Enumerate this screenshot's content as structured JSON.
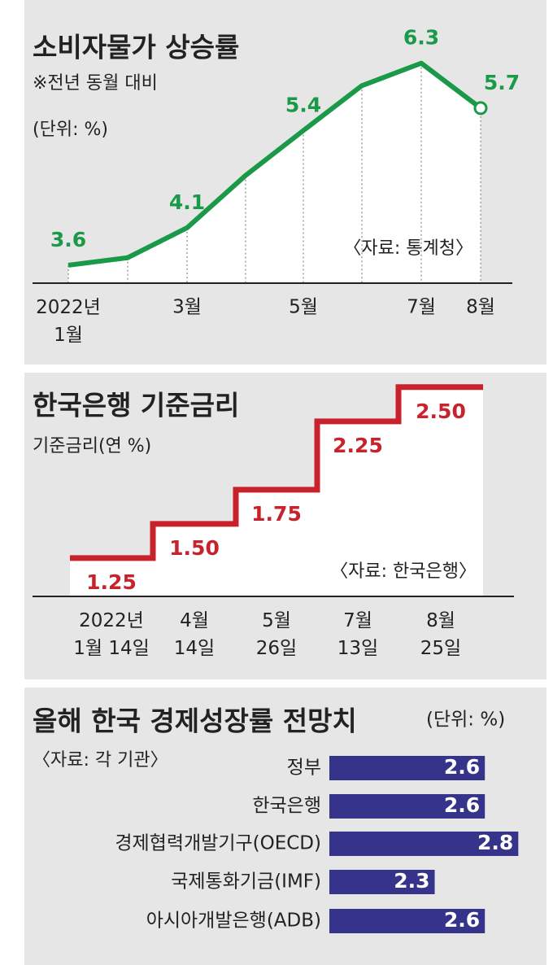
{
  "chart_data": [
    {
      "type": "line",
      "title": "소비자물가 상승률",
      "subtitle": "※전년 동월 대비",
      "unit": "(단위: %)",
      "source": "〈자료: 통계청〉",
      "categories": [
        "2022년\n1월",
        null,
        "3월",
        null,
        "5월",
        null,
        "7월",
        "8월"
      ],
      "values": [
        3.6,
        3.7,
        4.1,
        4.8,
        5.4,
        6.0,
        6.3,
        5.7
      ],
      "color": "#1a9a48",
      "ylim": [
        3.36,
        6.71
      ]
    },
    {
      "type": "step",
      "title": "한국은행 기준금리",
      "subtitle": "기준금리(연 %)",
      "source": "〈자료: 한국은행〉",
      "categories": [
        "2022년\n1월 14일",
        "4월\n14일",
        "5월\n26일",
        "7월\n13일",
        "8월\n25일"
      ],
      "values": [
        1.25,
        1.5,
        1.75,
        2.25,
        2.5
      ],
      "value_labels": [
        "1.25",
        "1.50",
        "1.75",
        "2.25",
        "2.50"
      ],
      "color": "#c8232c",
      "ylim": [
        0.97,
        2.6
      ]
    },
    {
      "type": "hbar",
      "title": "올해 한국 경제성장률 전망치",
      "unit": "(단위: %)",
      "source": "〈자료: 각 기관〉",
      "categories": [
        "정부",
        "한국은행",
        "경제협력개발기구(OECD)",
        "국제통화기금(IMF)",
        "아시아개발은행(ADB)"
      ],
      "values": [
        2.6,
        2.6,
        2.8,
        2.3,
        2.6
      ],
      "color": "#36348a",
      "xlim": [
        1.67,
        2.92
      ]
    }
  ]
}
